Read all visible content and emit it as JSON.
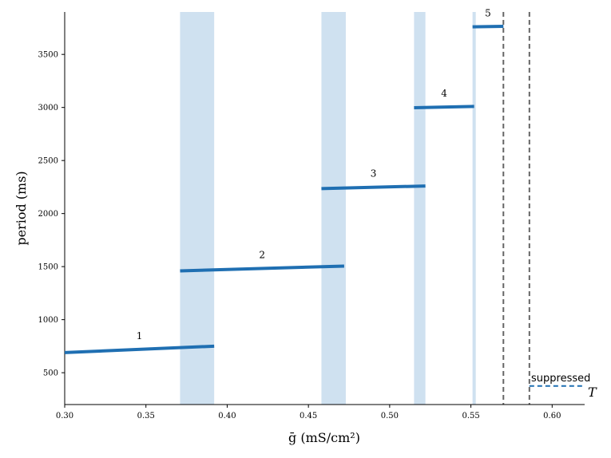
{
  "chart_data": {
    "type": "line",
    "xlabel": "ḡ (mS/cm²)",
    "ylabel": "period (ms)",
    "xlim": [
      0.3,
      0.62
    ],
    "ylim": [
      200,
      3900
    ],
    "xticks": [
      "0.30",
      "0.35",
      "0.40",
      "0.45",
      "0.50",
      "0.55",
      "0.60"
    ],
    "yticks": [
      "500",
      "1000",
      "1500",
      "2000",
      "2500",
      "3000",
      "3500"
    ],
    "grid": false,
    "colors": {
      "line": "#1f6fb2",
      "band": "#cfe1f0",
      "vline": "#666666"
    },
    "series": [
      {
        "name": "1",
        "x": [
          0.3,
          0.392
        ],
        "y": [
          690,
          750
        ]
      },
      {
        "name": "2",
        "x": [
          0.371,
          0.472
        ],
        "y": [
          1460,
          1505
        ]
      },
      {
        "name": "3",
        "x": [
          0.458,
          0.522
        ],
        "y": [
          2235,
          2260
        ]
      },
      {
        "name": "4",
        "x": [
          0.515,
          0.552
        ],
        "y": [
          2998,
          3010
        ]
      },
      {
        "name": "5",
        "x": [
          0.551,
          0.57
        ],
        "y": [
          3760,
          3765
        ]
      }
    ],
    "shaded_bands": [
      {
        "x": [
          0.371,
          0.392
        ]
      },
      {
        "x": [
          0.458,
          0.473
        ]
      },
      {
        "x": [
          0.515,
          0.522
        ]
      },
      {
        "x": [
          0.551,
          0.553
        ]
      }
    ],
    "vertical_lines": [
      0.57,
      0.586
    ],
    "threshold_line": {
      "x": [
        0.586,
        0.62
      ],
      "y": 375,
      "style": "dashed"
    },
    "annotations": {
      "suppressed": "suppressed",
      "T": "T"
    }
  }
}
